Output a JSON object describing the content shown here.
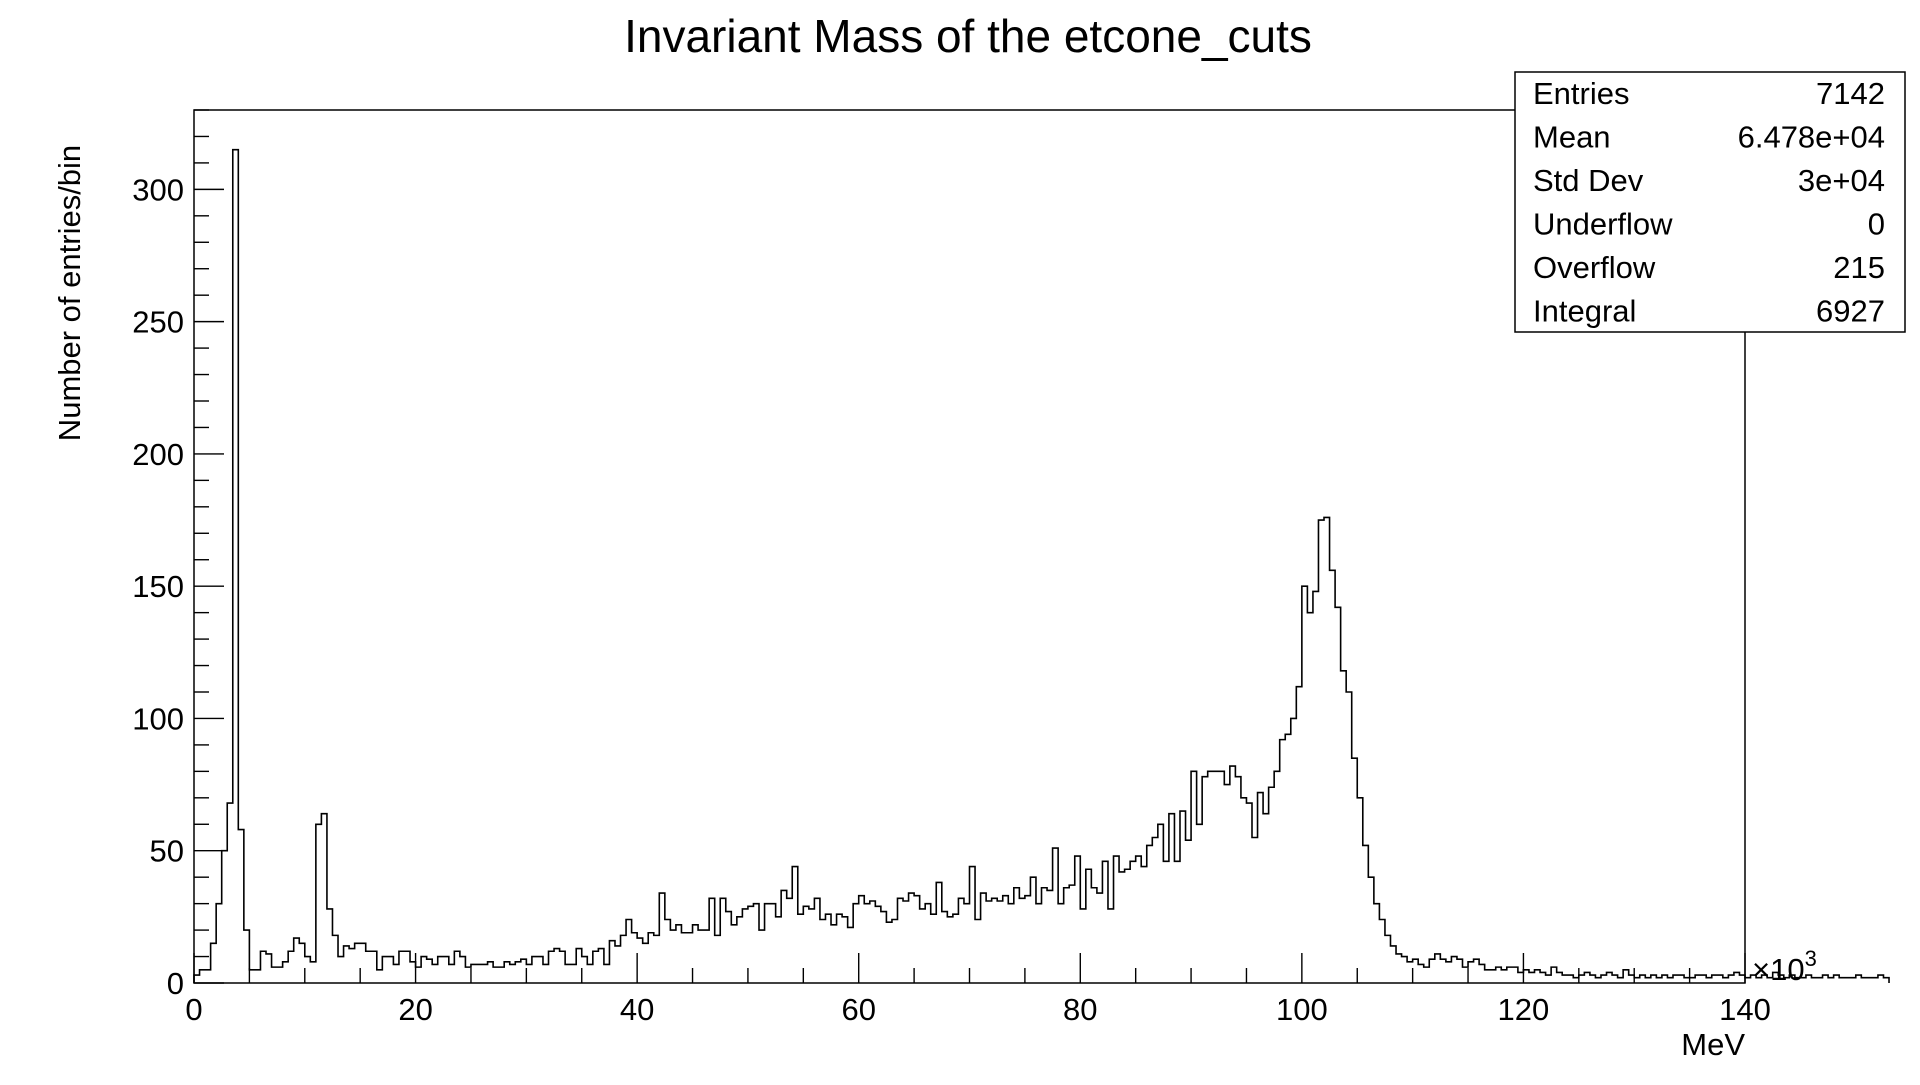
{
  "chart_data": {
    "type": "bar",
    "title": "Invariant Mass of the etcone_cuts",
    "xlabel": "MeV",
    "ylabel": "Number of entries/bin",
    "x_multiplier": "×10",
    "x_multiplier_exp": "3",
    "xlim": [
      0,
      140
    ],
    "ylim": [
      0,
      330
    ],
    "bin_width": 0.5,
    "x_ticks": [
      0,
      20,
      40,
      60,
      80,
      100,
      120,
      140
    ],
    "y_ticks": [
      0,
      50,
      100,
      150,
      200,
      250,
      300
    ],
    "stats": [
      {
        "label": "Entries",
        "value": "7142"
      },
      {
        "label": "Mean",
        "value": "6.478e+04"
      },
      {
        "label": "Std Dev",
        "value": "3e+04"
      },
      {
        "label": "Underflow",
        "value": "0"
      },
      {
        "label": "Overflow",
        "value": "215"
      },
      {
        "label": "Integral",
        "value": "6927"
      }
    ],
    "values": [
      3,
      5,
      5,
      15,
      30,
      50,
      68,
      315,
      58,
      20,
      5,
      5,
      12,
      11,
      6,
      6,
      8,
      12,
      17,
      15,
      10,
      8,
      60,
      64,
      28,
      18,
      10,
      14,
      13,
      15,
      15,
      12,
      12,
      5,
      10,
      10,
      7,
      12,
      12,
      8,
      6,
      10,
      9,
      7,
      10,
      10,
      7,
      12,
      10,
      6,
      7,
      7,
      7,
      8,
      6,
      6,
      8,
      7,
      8,
      9,
      7,
      10,
      10,
      7,
      12,
      13,
      12,
      7,
      7,
      13,
      10,
      7,
      12,
      13,
      7,
      16,
      14,
      18,
      24,
      19,
      17,
      15,
      19,
      18,
      34,
      24,
      20,
      22,
      19,
      19,
      22,
      20,
      20,
      32,
      18,
      32,
      27,
      22,
      25,
      28,
      29,
      30,
      20,
      30,
      30,
      25,
      35,
      32,
      44,
      26,
      29,
      28,
      32,
      24,
      26,
      22,
      26,
      25,
      21,
      30,
      33,
      30,
      31,
      29,
      27,
      23,
      24,
      32,
      31,
      34,
      33,
      28,
      30,
      26,
      38,
      27,
      25,
      26,
      32,
      30,
      44,
      24,
      34,
      31,
      32,
      31,
      33,
      30,
      36,
      32,
      33,
      40,
      30,
      36,
      35,
      51,
      30,
      36,
      37,
      48,
      28,
      43,
      36,
      34,
      46,
      28,
      48,
      42,
      43,
      46,
      48,
      44,
      52,
      55,
      60,
      46,
      64,
      46,
      65,
      54,
      80,
      60,
      78,
      80,
      80,
      80,
      75,
      82,
      78,
      70,
      68,
      55,
      72,
      64,
      74,
      80,
      92,
      94,
      100,
      112,
      150,
      140,
      148,
      175,
      176,
      156,
      142,
      118,
      110,
      85,
      70,
      52,
      40,
      30,
      24,
      18,
      14,
      11,
      10,
      8,
      9,
      7,
      6,
      9,
      11,
      9,
      8,
      10,
      9,
      6,
      8,
      9,
      7,
      5,
      5,
      6,
      5,
      6,
      6,
      4,
      5,
      4,
      5,
      4,
      3,
      6,
      4,
      3,
      3,
      2,
      3,
      4,
      3,
      2,
      3,
      4,
      3,
      2,
      5,
      3,
      2,
      3,
      2,
      3,
      2,
      3,
      2,
      3,
      3,
      2,
      2,
      3,
      3,
      2,
      3,
      3,
      2,
      3,
      4,
      3,
      2,
      3,
      2,
      3,
      2,
      4,
      3,
      2,
      3,
      2,
      2,
      3,
      2,
      2,
      3,
      2,
      3,
      2,
      2,
      2,
      3,
      2,
      2,
      2,
      3,
      2
    ]
  }
}
